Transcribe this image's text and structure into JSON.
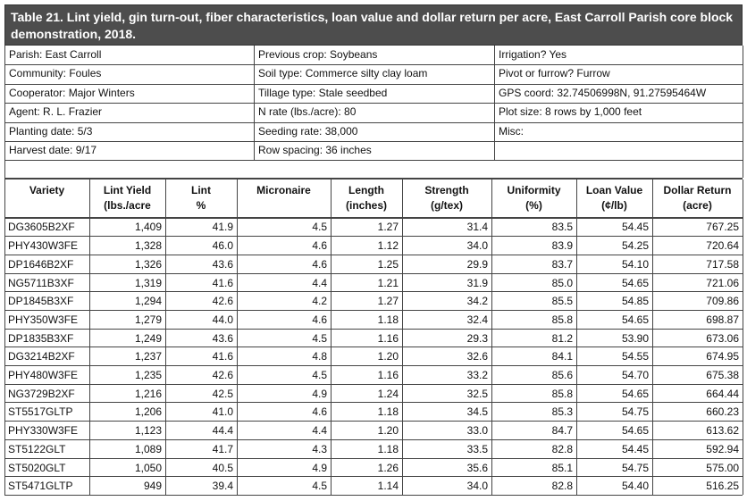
{
  "title": "Table 21. Lint yield, gin turn-out, fiber characteristics, loan value and dollar return per acre, East Carroll Parish core block demonstration, 2018.",
  "info": [
    [
      "Parish: East Carroll",
      "Previous crop: Soybeans",
      "Irrigation? Yes"
    ],
    [
      "Community: Foules",
      "Soil type: Commerce silty clay loam",
      "Pivot or furrow? Furrow"
    ],
    [
      "Cooperator: Major Winters",
      "Tillage type: Stale seedbed",
      "GPS coord: 32.74506998N, 91.27595464W"
    ],
    [
      "Agent: R. L. Frazier",
      "N rate (lbs./acre): 80",
      "Plot size: 8 rows by 1,000 feet"
    ],
    [
      "Planting date: 5/3",
      "Seeding rate: 38,000",
      "Misc:"
    ],
    [
      "Harvest date: 9/17",
      "Row spacing: 36 inches"
    ]
  ],
  "table": {
    "header": [
      [
        "Variety"
      ],
      [
        "Lint Yield",
        "(lbs./acre"
      ],
      [
        "Lint",
        "%"
      ],
      [
        "Micronaire"
      ],
      [
        "Length",
        "(inches)"
      ],
      [
        "Strength",
        "(g/tex)"
      ],
      [
        "Uniformity",
        "(%)"
      ],
      [
        "Loan Value",
        "(¢/lb)"
      ],
      [
        "Dollar Return",
        "(acre)"
      ]
    ],
    "rows": [
      [
        "DG3605B2XF",
        "1,409",
        "41.9",
        "4.5",
        "1.27",
        "31.4",
        "83.5",
        "54.45",
        "767.25"
      ],
      [
        "PHY430W3FE",
        "1,328",
        "46.0",
        "4.6",
        "1.12",
        "34.0",
        "83.9",
        "54.25",
        "720.64"
      ],
      [
        "DP1646B2XF",
        "1,326",
        "43.6",
        "4.6",
        "1.25",
        "29.9",
        "83.7",
        "54.10",
        "717.58"
      ],
      [
        "NG5711B3XF",
        "1,319",
        "41.6",
        "4.4",
        "1.21",
        "31.9",
        "85.0",
        "54.65",
        "721.06"
      ],
      [
        "DP1845B3XF",
        "1,294",
        "42.6",
        "4.2",
        "1.27",
        "34.2",
        "85.5",
        "54.85",
        "709.86"
      ],
      [
        "PHY350W3FE",
        "1,279",
        "44.0",
        "4.6",
        "1.18",
        "32.4",
        "85.8",
        "54.65",
        "698.87"
      ],
      [
        "DP1835B3XF",
        "1,249",
        "43.6",
        "4.5",
        "1.16",
        "29.3",
        "81.2",
        "53.90",
        "673.06"
      ],
      [
        "DG3214B2XF",
        "1,237",
        "41.6",
        "4.8",
        "1.20",
        "32.6",
        "84.1",
        "54.55",
        "674.95"
      ],
      [
        "PHY480W3FE",
        "1,235",
        "42.6",
        "4.5",
        "1.16",
        "33.2",
        "85.6",
        "54.70",
        "675.38"
      ],
      [
        "NG3729B2XF",
        "1,216",
        "42.5",
        "4.9",
        "1.24",
        "32.5",
        "85.8",
        "54.65",
        "664.44"
      ],
      [
        "ST5517GLTP",
        "1,206",
        "41.0",
        "4.6",
        "1.18",
        "34.5",
        "85.3",
        "54.75",
        "660.23"
      ],
      [
        "PHY330W3FE",
        "1,123",
        "44.4",
        "4.4",
        "1.20",
        "33.0",
        "84.7",
        "54.65",
        "613.62"
      ],
      [
        "ST5122GLT",
        "1,089",
        "41.7",
        "4.3",
        "1.18",
        "33.5",
        "82.8",
        "54.45",
        "592.94"
      ],
      [
        "ST5020GLT",
        "1,050",
        "40.5",
        "4.9",
        "1.26",
        "35.6",
        "85.1",
        "54.75",
        "575.00"
      ],
      [
        "ST5471GLTP",
        "949",
        "39.4",
        "4.5",
        "1.14",
        "34.0",
        "82.8",
        "54.40",
        "516.25"
      ]
    ]
  }
}
